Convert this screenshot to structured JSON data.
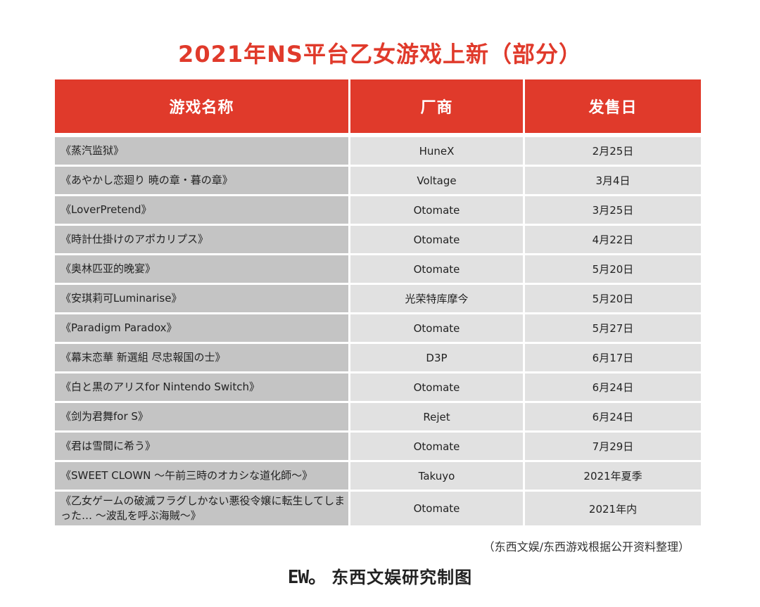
{
  "title": "2021年NS平台乙女游戏上新（部分）",
  "colors": {
    "title": "#e03a2b",
    "header_bg": "#e03a2b",
    "name_cell_bg": "#c4c4c4",
    "value_cell_bg": "#e1e1e1"
  },
  "table": {
    "headers": [
      "游戏名称",
      "厂商",
      "发售日"
    ],
    "rows": [
      [
        "《蒸汽监狱》",
        "HuneX",
        "2月25日"
      ],
      [
        "《あやかし恋廻り 暁の章・暮の章》",
        "Voltage",
        "3月4日"
      ],
      [
        "《LoverPretend》",
        "Otomate",
        "3月25日"
      ],
      [
        "《時計仕掛けのアポカリプス》",
        "Otomate",
        "4月22日"
      ],
      [
        "《奥林匹亚的晚宴》",
        "Otomate",
        "5月20日"
      ],
      [
        "《安琪莉可Luminarise》",
        "光荣特库摩今",
        "5月20日"
      ],
      [
        "《Paradigm Paradox》",
        "Otomate",
        "5月27日"
      ],
      [
        "《幕末恋華 新選組 尽忠報国の士》",
        "D3P",
        "6月17日"
      ],
      [
        "《白と黒のアリスfor Nintendo Switch》",
        "Otomate",
        "6月24日"
      ],
      [
        "《剑为君舞for S》",
        "Rejet",
        "6月24日"
      ],
      [
        "《君は雪間に希う》",
        "Otomate",
        "7月29日"
      ],
      [
        "《SWEET CLOWN ～午前三時のオカシな道化師～》",
        "Takuyo",
        "2021年夏季"
      ],
      [
        "《乙女ゲームの破滅フラグしかない悪役令嬢に転生してしまった… ～波乱を呼ぶ海賊～》",
        "Otomate",
        "2021年内"
      ]
    ]
  },
  "source_note": "（东西文娱/东西游戏根据公开资料整理）",
  "footer": {
    "logo_text": "EW。",
    "text": "东西文娱研究制图"
  }
}
